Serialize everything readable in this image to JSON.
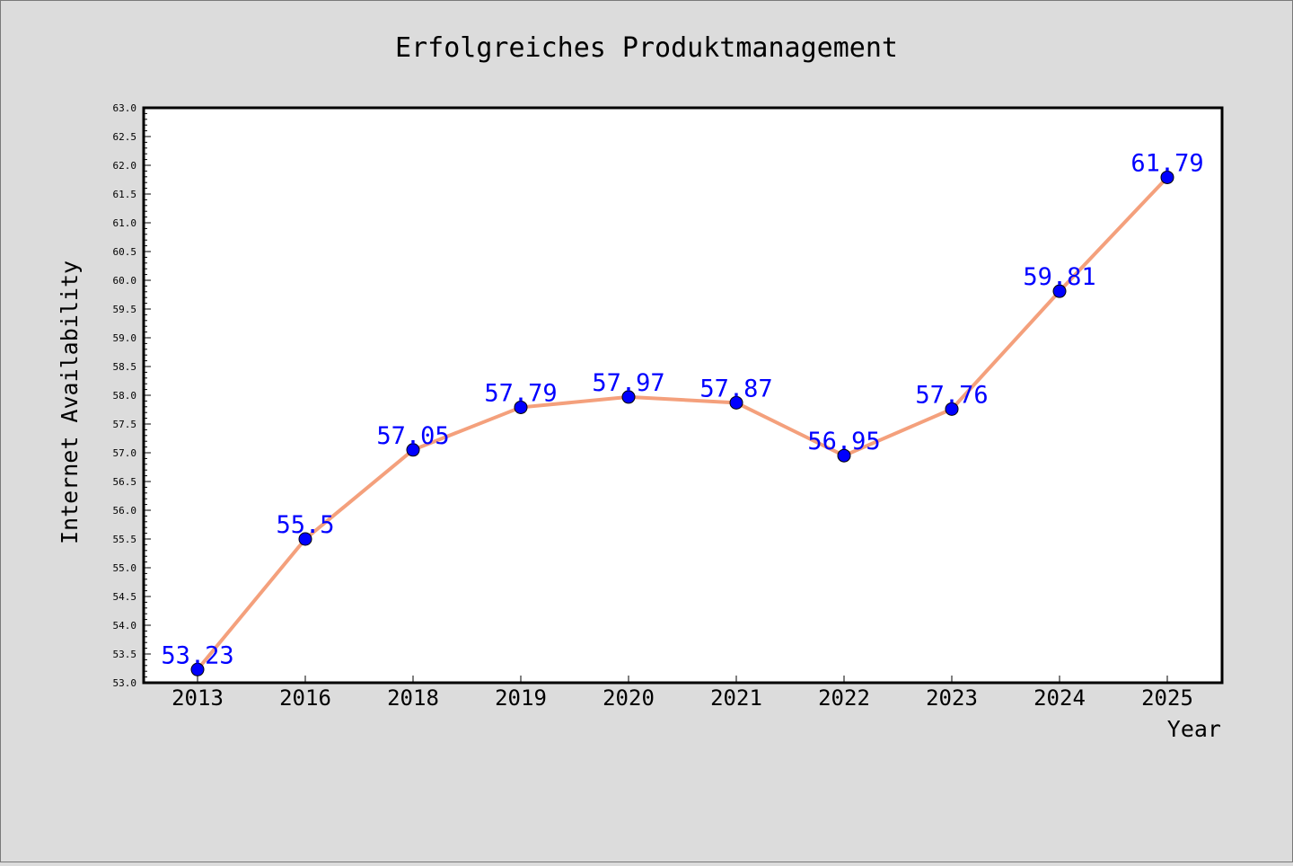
{
  "chart_data": {
    "type": "line",
    "title": "Erfolgreiches Produktmanagement",
    "xlabel": "Year",
    "ylabel": "Internet Availability",
    "categories": [
      "2013",
      "2016",
      "2018",
      "2019",
      "2020",
      "2021",
      "2022",
      "2023",
      "2024",
      "2025"
    ],
    "series": [
      {
        "values": [
          53.23,
          55.5,
          57.05,
          57.79,
          57.97,
          57.87,
          56.95,
          57.76,
          59.81,
          61.79
        ],
        "labels": [
          "53.23",
          "55.5",
          "57.05",
          "57.79",
          "57.97",
          "57.87",
          "56.95",
          "57.76",
          "59.81",
          "61.79"
        ]
      }
    ],
    "ylim": [
      53.0,
      63.0
    ],
    "yticks": [
      "53.0",
      "53.5",
      "54.0",
      "54.5",
      "55.0",
      "55.5",
      "56.0",
      "56.5",
      "57.0",
      "57.5",
      "58.0",
      "58.5",
      "59.0",
      "59.5",
      "60.0",
      "60.5",
      "61.0",
      "61.5",
      "62.0",
      "62.5",
      "63.0"
    ],
    "grid": false,
    "legend": "none",
    "colors": {
      "background": "#dcdcdc",
      "plot_background": "#ffffff",
      "line": "#f4a07c",
      "marker": "#0000ff",
      "data_label": "#0000ff",
      "text": "#000000"
    }
  }
}
